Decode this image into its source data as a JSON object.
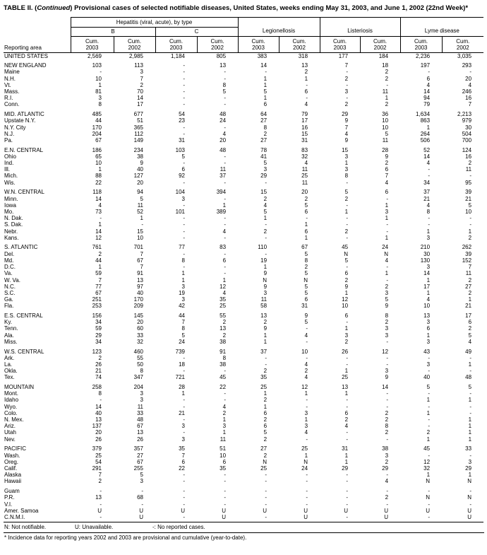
{
  "title": {
    "prefix": "TABLE II. (",
    "continued": "Continued",
    "rest": ") Provisional cases of selected notifiable diseases, United States, weeks ending May 31, 2003, and June 1, 2002 (22nd Week)*"
  },
  "header": {
    "reporting_area": "Reporting area",
    "hepatitis_group": "Hepatitis (viral, acute), by type",
    "subgroups": [
      "B",
      "C"
    ],
    "disease_groups": [
      "Legionellosis",
      "Listeriosis",
      "Lyme disease"
    ],
    "cum_label": "Cum.",
    "years": [
      "2003",
      "2002",
      "2003",
      "2002",
      "2003",
      "2002",
      "2003",
      "2002",
      "2003",
      "2002"
    ]
  },
  "rows": [
    {
      "label": "UNITED STATES",
      "kind": "total",
      "gap": false,
      "values": [
        "2,569",
        "2,985",
        "1,184",
        "805",
        "383",
        "318",
        "177",
        "184",
        "2,236",
        "3,035"
      ]
    },
    {
      "label": "NEW ENGLAND",
      "kind": "region",
      "gap": true,
      "values": [
        "103",
        "113",
        "-",
        "13",
        "14",
        "13",
        "7",
        "18",
        "197",
        "293"
      ]
    },
    {
      "label": "Maine",
      "kind": "state",
      "gap": false,
      "values": [
        "-",
        "3",
        "-",
        "-",
        "-",
        "2",
        "-",
        "2",
        "-",
        "-"
      ]
    },
    {
      "label": "N.H.",
      "kind": "state",
      "gap": false,
      "values": [
        "10",
        "7",
        "-",
        "-",
        "1",
        "1",
        "2",
        "2",
        "6",
        "20"
      ]
    },
    {
      "label": "Vt.",
      "kind": "state",
      "gap": false,
      "values": [
        "1",
        "2",
        "-",
        "8",
        "1",
        "-",
        "-",
        "-",
        "4",
        "4"
      ]
    },
    {
      "label": "Mass.",
      "kind": "state",
      "gap": false,
      "values": [
        "81",
        "70",
        "-",
        "5",
        "5",
        "6",
        "3",
        "11",
        "14",
        "246"
      ]
    },
    {
      "label": "R.I.",
      "kind": "state",
      "gap": false,
      "values": [
        "3",
        "14",
        "-",
        "-",
        "1",
        "-",
        "-",
        "1",
        "94",
        "16"
      ]
    },
    {
      "label": "Conn.",
      "kind": "state",
      "gap": false,
      "values": [
        "8",
        "17",
        "-",
        "-",
        "6",
        "4",
        "2",
        "2",
        "79",
        "7"
      ]
    },
    {
      "label": "MID. ATLANTIC",
      "kind": "region",
      "gap": true,
      "values": [
        "485",
        "677",
        "54",
        "48",
        "64",
        "79",
        "29",
        "36",
        "1,634",
        "2,213"
      ]
    },
    {
      "label": "Upstate N.Y.",
      "kind": "state",
      "gap": false,
      "values": [
        "44",
        "51",
        "23",
        "24",
        "27",
        "17",
        "9",
        "10",
        "863",
        "979"
      ]
    },
    {
      "label": "N.Y. City",
      "kind": "state",
      "gap": false,
      "values": [
        "170",
        "365",
        "-",
        "-",
        "8",
        "16",
        "7",
        "10",
        "1",
        "30"
      ]
    },
    {
      "label": "N.J.",
      "kind": "state",
      "gap": false,
      "values": [
        "204",
        "112",
        "-",
        "4",
        "2",
        "15",
        "4",
        "5",
        "264",
        "504"
      ]
    },
    {
      "label": "Pa.",
      "kind": "state",
      "gap": false,
      "values": [
        "67",
        "149",
        "31",
        "20",
        "27",
        "31",
        "9",
        "11",
        "506",
        "700"
      ]
    },
    {
      "label": "E.N. CENTRAL",
      "kind": "region",
      "gap": true,
      "values": [
        "186",
        "234",
        "103",
        "48",
        "78",
        "83",
        "15",
        "28",
        "52",
        "124"
      ]
    },
    {
      "label": "Ohio",
      "kind": "state",
      "gap": false,
      "values": [
        "65",
        "38",
        "5",
        "-",
        "41",
        "32",
        "3",
        "9",
        "14",
        "16"
      ]
    },
    {
      "label": "Ind.",
      "kind": "state",
      "gap": false,
      "values": [
        "10",
        "9",
        "-",
        "-",
        "5",
        "4",
        "1",
        "2",
        "4",
        "2"
      ]
    },
    {
      "label": "Ill.",
      "kind": "state",
      "gap": false,
      "values": [
        "1",
        "40",
        "6",
        "11",
        "3",
        "11",
        "3",
        "6",
        "-",
        "11"
      ]
    },
    {
      "label": "Mich.",
      "kind": "state",
      "gap": false,
      "values": [
        "88",
        "127",
        "92",
        "37",
        "29",
        "25",
        "8",
        "7",
        "-",
        "-"
      ]
    },
    {
      "label": "Wis.",
      "kind": "state",
      "gap": false,
      "values": [
        "22",
        "20",
        "-",
        "-",
        "-",
        "11",
        "-",
        "4",
        "34",
        "95"
      ]
    },
    {
      "label": "W.N. CENTRAL",
      "kind": "region",
      "gap": true,
      "values": [
        "118",
        "94",
        "104",
        "394",
        "15",
        "20",
        "5",
        "6",
        "37",
        "39"
      ]
    },
    {
      "label": "Minn.",
      "kind": "state",
      "gap": false,
      "values": [
        "14",
        "5",
        "3",
        "-",
        "2",
        "2",
        "2",
        "-",
        "21",
        "21"
      ]
    },
    {
      "label": "Iowa",
      "kind": "state",
      "gap": false,
      "values": [
        "4",
        "11",
        "-",
        "1",
        "4",
        "5",
        "-",
        "1",
        "4",
        "5"
      ]
    },
    {
      "label": "Mo.",
      "kind": "state",
      "gap": false,
      "values": [
        "73",
        "52",
        "101",
        "389",
        "5",
        "6",
        "1",
        "3",
        "8",
        "10"
      ]
    },
    {
      "label": "N. Dak.",
      "kind": "state",
      "gap": false,
      "values": [
        "-",
        "1",
        "-",
        "-",
        "1",
        "-",
        "-",
        "1",
        "-",
        "-"
      ]
    },
    {
      "label": "S. Dak.",
      "kind": "state",
      "gap": false,
      "values": [
        "1",
        "-",
        "-",
        "-",
        "-",
        "1",
        "-",
        "-",
        "-",
        "-"
      ]
    },
    {
      "label": "Nebr.",
      "kind": "state",
      "gap": false,
      "values": [
        "14",
        "15",
        "-",
        "4",
        "2",
        "6",
        "2",
        "-",
        "1",
        "1"
      ]
    },
    {
      "label": "Kans.",
      "kind": "state",
      "gap": false,
      "values": [
        "12",
        "10",
        "-",
        "-",
        "-",
        "1",
        "-",
        "1",
        "3",
        "2"
      ]
    },
    {
      "label": "S. ATLANTIC",
      "kind": "region",
      "gap": true,
      "values": [
        "761",
        "701",
        "77",
        "83",
        "110",
        "67",
        "45",
        "24",
        "210",
        "262"
      ]
    },
    {
      "label": "Del.",
      "kind": "state",
      "gap": false,
      "values": [
        "2",
        "7",
        "-",
        "-",
        "-",
        "5",
        "N",
        "N",
        "30",
        "39"
      ]
    },
    {
      "label": "Md.",
      "kind": "state",
      "gap": false,
      "values": [
        "44",
        "67",
        "8",
        "6",
        "19",
        "8",
        "5",
        "4",
        "130",
        "152"
      ]
    },
    {
      "label": "D.C.",
      "kind": "state",
      "gap": false,
      "values": [
        "1",
        "7",
        "-",
        "-",
        "1",
        "2",
        "-",
        "-",
        "3",
        "7"
      ]
    },
    {
      "label": "Va.",
      "kind": "state",
      "gap": false,
      "values": [
        "59",
        "91",
        "1",
        "-",
        "9",
        "5",
        "6",
        "1",
        "14",
        "11"
      ]
    },
    {
      "label": "W. Va.",
      "kind": "state",
      "gap": false,
      "values": [
        "7",
        "13",
        "1",
        "1",
        "N",
        "N",
        "2",
        "-",
        "1",
        "2"
      ]
    },
    {
      "label": "N.C.",
      "kind": "state",
      "gap": false,
      "values": [
        "77",
        "97",
        "3",
        "12",
        "9",
        "5",
        "9",
        "2",
        "17",
        "27"
      ]
    },
    {
      "label": "S.C.",
      "kind": "state",
      "gap": false,
      "values": [
        "67",
        "40",
        "19",
        "4",
        "3",
        "5",
        "1",
        "3",
        "1",
        "2"
      ]
    },
    {
      "label": "Ga.",
      "kind": "state",
      "gap": false,
      "values": [
        "251",
        "170",
        "3",
        "35",
        "11",
        "6",
        "12",
        "5",
        "4",
        "1"
      ]
    },
    {
      "label": "Fla.",
      "kind": "state",
      "gap": false,
      "values": [
        "253",
        "209",
        "42",
        "25",
        "58",
        "31",
        "10",
        "9",
        "10",
        "21"
      ]
    },
    {
      "label": "E.S. CENTRAL",
      "kind": "region",
      "gap": true,
      "values": [
        "156",
        "145",
        "44",
        "55",
        "13",
        "9",
        "6",
        "8",
        "13",
        "17"
      ]
    },
    {
      "label": "Ky.",
      "kind": "state",
      "gap": false,
      "values": [
        "34",
        "20",
        "7",
        "2",
        "2",
        "5",
        "-",
        "2",
        "3",
        "6"
      ]
    },
    {
      "label": "Tenn.",
      "kind": "state",
      "gap": false,
      "values": [
        "59",
        "60",
        "8",
        "13",
        "9",
        "-",
        "1",
        "3",
        "6",
        "2"
      ]
    },
    {
      "label": "Ala.",
      "kind": "state",
      "gap": false,
      "values": [
        "29",
        "33",
        "5",
        "2",
        "1",
        "4",
        "3",
        "3",
        "1",
        "5"
      ]
    },
    {
      "label": "Miss.",
      "kind": "state",
      "gap": false,
      "values": [
        "34",
        "32",
        "24",
        "38",
        "1",
        "-",
        "2",
        "-",
        "3",
        "4"
      ]
    },
    {
      "label": "W.S. CENTRAL",
      "kind": "region",
      "gap": true,
      "values": [
        "123",
        "460",
        "739",
        "91",
        "37",
        "10",
        "26",
        "12",
        "43",
        "49"
      ]
    },
    {
      "label": "Ark.",
      "kind": "state",
      "gap": false,
      "values": [
        "2",
        "55",
        "-",
        "8",
        "-",
        "-",
        "-",
        "-",
        "-",
        "-"
      ]
    },
    {
      "label": "La.",
      "kind": "state",
      "gap": false,
      "values": [
        "26",
        "50",
        "18",
        "38",
        "-",
        "4",
        "-",
        "-",
        "3",
        "1"
      ]
    },
    {
      "label": "Okla.",
      "kind": "state",
      "gap": false,
      "values": [
        "21",
        "8",
        "-",
        "-",
        "2",
        "2",
        "1",
        "3",
        "-",
        "-"
      ]
    },
    {
      "label": "Tex.",
      "kind": "state",
      "gap": false,
      "values": [
        "74",
        "347",
        "721",
        "45",
        "35",
        "4",
        "25",
        "9",
        "40",
        "48"
      ]
    },
    {
      "label": "MOUNTAIN",
      "kind": "region",
      "gap": true,
      "values": [
        "258",
        "204",
        "28",
        "22",
        "25",
        "12",
        "13",
        "14",
        "5",
        "5"
      ]
    },
    {
      "label": "Mont.",
      "kind": "state",
      "gap": false,
      "values": [
        "8",
        "3",
        "1",
        "-",
        "1",
        "1",
        "1",
        "-",
        "-",
        "-"
      ]
    },
    {
      "label": "Idaho",
      "kind": "state",
      "gap": false,
      "values": [
        "-",
        "3",
        "-",
        "-",
        "2",
        "-",
        "-",
        "-",
        "1",
        "1"
      ]
    },
    {
      "label": "Wyo.",
      "kind": "state",
      "gap": false,
      "values": [
        "14",
        "11",
        "-",
        "4",
        "1",
        "-",
        "-",
        "-",
        "-",
        "-"
      ]
    },
    {
      "label": "Colo.",
      "kind": "state",
      "gap": false,
      "values": [
        "40",
        "33",
        "21",
        "2",
        "6",
        "3",
        "6",
        "2",
        "1",
        "-"
      ]
    },
    {
      "label": "N. Mex.",
      "kind": "state",
      "gap": false,
      "values": [
        "13",
        "48",
        "-",
        "1",
        "2",
        "1",
        "2",
        "2",
        "-",
        "1"
      ]
    },
    {
      "label": "Ariz.",
      "kind": "state",
      "gap": false,
      "values": [
        "137",
        "67",
        "3",
        "3",
        "6",
        "3",
        "4",
        "8",
        "-",
        "1"
      ]
    },
    {
      "label": "Utah",
      "kind": "state",
      "gap": false,
      "values": [
        "20",
        "13",
        "-",
        "1",
        "5",
        "4",
        "-",
        "2",
        "2",
        "1"
      ]
    },
    {
      "label": "Nev.",
      "kind": "state",
      "gap": false,
      "values": [
        "26",
        "26",
        "3",
        "11",
        "2",
        "-",
        "-",
        "-",
        "1",
        "1"
      ]
    },
    {
      "label": "PACIFIC",
      "kind": "region",
      "gap": true,
      "values": [
        "379",
        "357",
        "35",
        "51",
        "27",
        "25",
        "31",
        "38",
        "45",
        "33"
      ]
    },
    {
      "label": "Wash.",
      "kind": "state",
      "gap": false,
      "values": [
        "25",
        "27",
        "7",
        "10",
        "2",
        "1",
        "1",
        "3",
        "-",
        "-"
      ]
    },
    {
      "label": "Oreg.",
      "kind": "state",
      "gap": false,
      "values": [
        "54",
        "67",
        "6",
        "6",
        "N",
        "N",
        "1",
        "2",
        "12",
        "3"
      ]
    },
    {
      "label": "Calif.",
      "kind": "state",
      "gap": false,
      "values": [
        "291",
        "255",
        "22",
        "35",
        "25",
        "24",
        "29",
        "29",
        "32",
        "29"
      ]
    },
    {
      "label": "Alaska",
      "kind": "state",
      "gap": false,
      "values": [
        "7",
        "5",
        "-",
        "-",
        "-",
        "-",
        "-",
        "-",
        "1",
        "1"
      ]
    },
    {
      "label": "Hawaii",
      "kind": "state",
      "gap": false,
      "values": [
        "2",
        "3",
        "-",
        "-",
        "-",
        "-",
        "-",
        "4",
        "N",
        "N"
      ]
    },
    {
      "label": "Guam",
      "kind": "territory",
      "gap": true,
      "values": [
        "-",
        "-",
        "-",
        "-",
        "-",
        "-",
        "-",
        "-",
        "-",
        "-"
      ]
    },
    {
      "label": "P.R.",
      "kind": "territory",
      "gap": false,
      "values": [
        "13",
        "68",
        "-",
        "-",
        "-",
        "-",
        "-",
        "2",
        "N",
        "N"
      ]
    },
    {
      "label": "V.I.",
      "kind": "territory",
      "gap": false,
      "values": [
        "-",
        "-",
        "-",
        "-",
        "-",
        "-",
        "-",
        "-",
        "-",
        "-"
      ]
    },
    {
      "label": "Amer. Samoa",
      "kind": "territory",
      "gap": false,
      "values": [
        "U",
        "U",
        "U",
        "U",
        "U",
        "U",
        "U",
        "U",
        "U",
        "U"
      ]
    },
    {
      "label": "C.N.M.I.",
      "kind": "territory",
      "gap": false,
      "values": [
        "-",
        "U",
        "-",
        "U",
        "-",
        "U",
        "-",
        "U",
        "-",
        "U"
      ]
    }
  ],
  "footnotes": {
    "legend": [
      "N: Not notifiable.",
      "U: Unavailable.",
      "-: No reported cases."
    ],
    "note": "* Incidence data for reporting years 2002 and 2003 are provisional and cumulative (year-to-date)."
  }
}
